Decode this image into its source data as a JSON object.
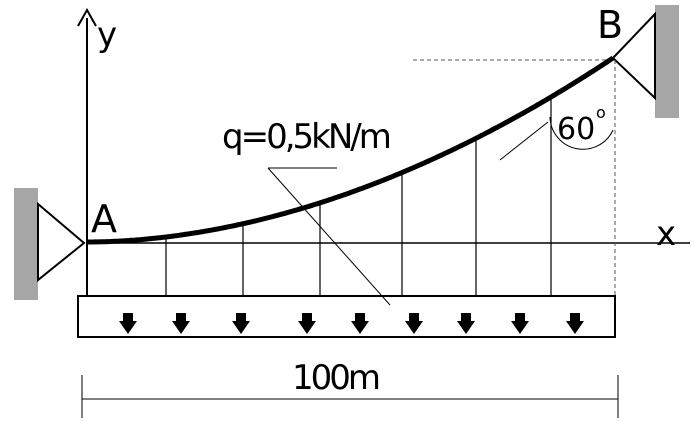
{
  "axes": {
    "x_label": "x",
    "y_label": "y"
  },
  "points": {
    "left": "A",
    "right": "B"
  },
  "load": {
    "label": "q=0,5kN/m"
  },
  "span": {
    "label": "100m"
  },
  "angle": {
    "value": "60",
    "degree": "o"
  },
  "colors": {
    "line": "#000000",
    "support": "#a6a6a6",
    "dashed": "#555555"
  }
}
